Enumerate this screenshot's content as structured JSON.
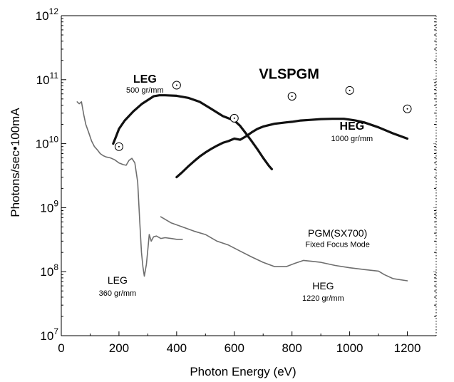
{
  "chart_data": {
    "type": "line",
    "title": "",
    "xlabel": "Photon Energy (eV)",
    "ylabel": "Photons/sec•100mA",
    "xlim": [
      0,
      1300
    ],
    "ylim": [
      10000000.0,
      1000000000000.0
    ],
    "yscale": "log",
    "grid": false,
    "x_ticks": [
      0,
      200,
      400,
      600,
      800,
      1000,
      1200
    ],
    "x_tick_labels": [
      "0",
      "200",
      "400",
      "600",
      "800",
      "1000",
      "1200"
    ],
    "y_ticks": [
      10000000.0,
      100000000.0,
      1000000000.0,
      10000000000.0,
      100000000000.0,
      1000000000000.0
    ],
    "y_tick_labels": [
      {
        "base": "10",
        "exp": "7"
      },
      {
        "base": "10",
        "exp": "8"
      },
      {
        "base": "10",
        "exp": "9"
      },
      {
        "base": "10",
        "exp": "10"
      },
      {
        "base": "10",
        "exp": "11"
      },
      {
        "base": "10",
        "exp": "12"
      }
    ],
    "series": [
      {
        "style": "thick-black",
        "x": [
          180,
          190,
          200,
          220,
          250,
          280,
          300,
          320,
          340,
          360,
          400,
          440,
          480,
          520,
          560,
          600,
          620,
          640,
          660,
          680,
          700,
          720,
          730
        ],
        "y": [
          10000000000.0,
          13000000000.0,
          17000000000.0,
          23000000000.0,
          32000000000.0,
          42000000000.0,
          48000000000.0,
          55000000000.0,
          57000000000.0,
          57000000000.0,
          56000000000.0,
          52000000000.0,
          45000000000.0,
          35000000000.0,
          27000000000.0,
          23000000000.0,
          19000000000.0,
          14500000000.0,
          11000000000.0,
          8200000000.0,
          6000000000.0,
          4500000000.0,
          4000000000.0
        ]
      },
      {
        "style": "thick-black",
        "x": [
          400,
          420,
          440,
          460,
          480,
          500,
          520,
          540,
          560,
          580,
          600,
          620,
          640,
          660,
          680,
          700,
          720,
          740,
          760,
          780,
          800,
          830,
          860,
          900,
          940,
          980,
          1000,
          1020,
          1050,
          1100,
          1150,
          1200
        ],
        "y": [
          3000000000.0,
          3600000000.0,
          4400000000.0,
          5300000000.0,
          6300000000.0,
          7300000000.0,
          8300000000.0,
          9300000000.0,
          10300000000.0,
          11000000000.0,
          12000000000.0,
          11500000000.0,
          13000000000.0,
          15000000000.0,
          17000000000.0,
          18500000000.0,
          19500000000.0,
          20500000000.0,
          21000000000.0,
          21500000000.0,
          22000000000.0,
          23000000000.0,
          23500000000.0,
          24200000000.0,
          24500000000.0,
          24500000000.0,
          23800000000.0,
          23000000000.0,
          21500000000.0,
          18000000000.0,
          14500000000.0,
          12000000000.0
        ]
      },
      {
        "style": "thin-gray",
        "x": [
          55,
          62,
          70,
          78,
          85,
          95,
          105,
          115,
          125,
          135,
          145,
          155,
          170,
          185,
          200,
          215,
          225,
          235,
          245,
          255,
          265,
          272,
          278,
          283,
          288,
          295,
          300,
          305,
          312,
          320,
          330,
          345,
          360,
          380,
          400,
          420
        ],
        "y": [
          45000000000.0,
          42000000000.0,
          45000000000.0,
          28000000000.0,
          20000000000.0,
          15000000000.0,
          11000000000.0,
          9000000000.0,
          8000000000.0,
          7000000000.0,
          6500000000.0,
          6200000000.0,
          6000000000.0,
          5600000000.0,
          5000000000.0,
          4700000000.0,
          4600000000.0,
          5500000000.0,
          5900000000.0,
          5000000000.0,
          2500000000.0,
          600000000.0,
          200000000.0,
          120000000.0,
          85000000.0,
          130000000.0,
          220000000.0,
          380000000.0,
          300000000.0,
          350000000.0,
          360000000.0,
          330000000.0,
          340000000.0,
          330000000.0,
          320000000.0,
          320000000.0
        ]
      },
      {
        "style": "thin-gray",
        "x": [
          345,
          380,
          420,
          460,
          500,
          540,
          580,
          620,
          660,
          700,
          740,
          780,
          810,
          840,
          870,
          900,
          950,
          1000,
          1050,
          1100,
          1120,
          1150,
          1200
        ],
        "y": [
          720000000.0,
          580000000.0,
          500000000.0,
          430000000.0,
          380000000.0,
          300000000.0,
          260000000.0,
          210000000.0,
          170000000.0,
          140000000.0,
          120000000.0,
          120000000.0,
          135000000.0,
          150000000.0,
          145000000.0,
          140000000.0,
          125000000.0,
          115000000.0,
          108000000.0,
          102000000.0,
          90000000.0,
          78000000.0,
          72000000.0
        ]
      },
      {
        "style": "open-circle-dot",
        "x": [
          200,
          400,
          600,
          800,
          1000,
          1200
        ],
        "y": [
          9000000000.0,
          82000000000.0,
          25000000000.0,
          55000000000.0,
          68000000000.0,
          35000000000.0
        ]
      }
    ],
    "annotations": [
      {
        "text": "LEG",
        "x": 290,
        "y": 90000000000.0,
        "style": "ann-bold"
      },
      {
        "text": "500 gr/mm",
        "x": 290,
        "y": 63000000000.0,
        "style": "ann-small"
      },
      {
        "text": "VLSPGM",
        "x": 790,
        "y": 103000000000.0,
        "style": "ann-title"
      },
      {
        "text": "HEG",
        "x": 1008,
        "y": 16500000000.0,
        "style": "ann-bold"
      },
      {
        "text": "1000 gr/mm",
        "x": 1008,
        "y": 10900000000.0,
        "style": "ann-small"
      },
      {
        "text": "PGM(SX700)",
        "x": 958,
        "y": 355000000.0,
        "style": "ann-gray"
      },
      {
        "text": "Fixed Focus Mode",
        "x": 958,
        "y": 242000000.0,
        "style": "ann-gray-small"
      },
      {
        "text": "LEG",
        "x": 195,
        "y": 65000000.0,
        "style": "ann-gray"
      },
      {
        "text": "360 gr/mm",
        "x": 195,
        "y": 42000000.0,
        "style": "ann-gray-small"
      },
      {
        "text": "HEG",
        "x": 908,
        "y": 53000000.0,
        "style": "ann-gray"
      },
      {
        "text": "1220  gr/mm",
        "x": 908,
        "y": 35000000.0,
        "style": "ann-gray-small"
      }
    ]
  }
}
